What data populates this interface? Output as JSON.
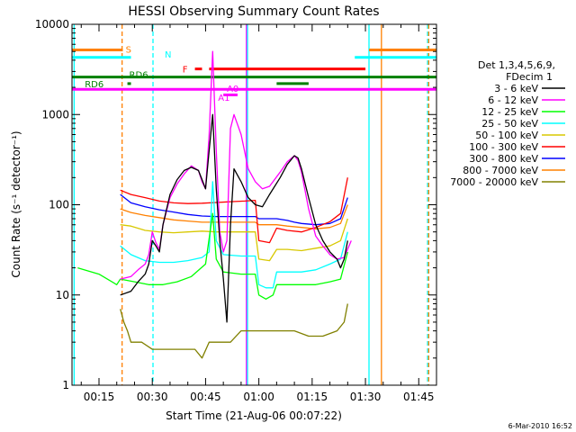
{
  "chart_data": {
    "type": "line",
    "title": "HESSI Observing Summary Count Rates",
    "xlabel": "Start Time (21-Aug-06 00:07:22)",
    "ylabel": "Count Rate (s⁻¹ detector⁻¹)",
    "yscale": "log",
    "ylim": [
      1,
      10000
    ],
    "xlim_minutes": [
      7.4,
      110
    ],
    "x_ticks": [
      {
        "t": 15,
        "label": "00:15"
      },
      {
        "t": 30,
        "label": "00:30"
      },
      {
        "t": 45,
        "label": "00:45"
      },
      {
        "t": 60,
        "label": "01:00"
      },
      {
        "t": 75,
        "label": "01:15"
      },
      {
        "t": 90,
        "label": "01:30"
      },
      {
        "t": 105,
        "label": "01:45"
      }
    ],
    "y_ticks": [
      {
        "v": 1,
        "label": "1"
      },
      {
        "v": 10,
        "label": "10"
      },
      {
        "v": 100,
        "label": "100"
      },
      {
        "v": 1000,
        "label": "1000"
      },
      {
        "v": 10000,
        "label": "10000"
      }
    ],
    "legend": {
      "position": "right",
      "header": [
        "Det 1,3,4,5,6,9,",
        "FDecim 1"
      ]
    },
    "series": [
      {
        "name": "3 - 6 keV",
        "color": "#000000",
        "points": [
          [
            21,
            10
          ],
          [
            24,
            11
          ],
          [
            26,
            14
          ],
          [
            28,
            17
          ],
          [
            29,
            22
          ],
          [
            30,
            40
          ],
          [
            31,
            35
          ],
          [
            32,
            30
          ],
          [
            33,
            60
          ],
          [
            35,
            130
          ],
          [
            37,
            190
          ],
          [
            39,
            240
          ],
          [
            41,
            260
          ],
          [
            43,
            240
          ],
          [
            44,
            190
          ],
          [
            45,
            150
          ],
          [
            46,
            400
          ],
          [
            47,
            1000
          ],
          [
            48,
            150
          ],
          [
            49,
            40
          ],
          [
            50,
            15
          ],
          [
            51,
            5
          ],
          [
            52,
            60
          ],
          [
            53,
            250
          ],
          [
            55,
            180
          ],
          [
            57,
            120
          ],
          [
            59,
            100
          ],
          [
            61,
            95
          ],
          [
            63,
            130
          ],
          [
            66,
            200
          ],
          [
            68,
            280
          ],
          [
            70,
            350
          ],
          [
            71,
            330
          ],
          [
            72,
            250
          ],
          [
            74,
            120
          ],
          [
            76,
            60
          ],
          [
            78,
            40
          ],
          [
            80,
            30
          ],
          [
            82,
            25
          ],
          [
            83,
            20
          ],
          [
            84,
            25
          ],
          [
            85,
            40
          ]
        ]
      },
      {
        "name": "6 - 12 keV",
        "color": "#ff00ff",
        "points": [
          [
            21,
            15
          ],
          [
            24,
            16
          ],
          [
            26,
            19
          ],
          [
            28,
            22
          ],
          [
            29,
            28
          ],
          [
            30,
            50
          ],
          [
            31,
            38
          ],
          [
            32,
            32
          ],
          [
            33,
            60
          ],
          [
            35,
            120
          ],
          [
            37,
            170
          ],
          [
            39,
            220
          ],
          [
            41,
            270
          ],
          [
            43,
            240
          ],
          [
            44,
            180
          ],
          [
            45,
            150
          ],
          [
            46,
            600
          ],
          [
            47,
            5000
          ],
          [
            48,
            400
          ],
          [
            49,
            50
          ],
          [
            50,
            30
          ],
          [
            51,
            40
          ],
          [
            52,
            700
          ],
          [
            53,
            1000
          ],
          [
            55,
            600
          ],
          [
            57,
            250
          ],
          [
            59,
            180
          ],
          [
            61,
            150
          ],
          [
            63,
            160
          ],
          [
            66,
            230
          ],
          [
            68,
            300
          ],
          [
            70,
            350
          ],
          [
            71,
            310
          ],
          [
            72,
            230
          ],
          [
            74,
            90
          ],
          [
            76,
            45
          ],
          [
            78,
            35
          ],
          [
            80,
            28
          ],
          [
            82,
            25
          ],
          [
            84,
            26
          ],
          [
            86,
            40
          ]
        ]
      },
      {
        "name": "12 - 25 keV",
        "color": "#00ff00",
        "points": [
          [
            9,
            20
          ],
          [
            15,
            17
          ],
          [
            20,
            13
          ],
          [
            21,
            15
          ],
          [
            25,
            14
          ],
          [
            29,
            13
          ],
          [
            33,
            13
          ],
          [
            37,
            14
          ],
          [
            41,
            16
          ],
          [
            45,
            22
          ],
          [
            47,
            80
          ],
          [
            48,
            25
          ],
          [
            50,
            18
          ],
          [
            55,
            17
          ],
          [
            59,
            17
          ],
          [
            60,
            10
          ],
          [
            62,
            9
          ],
          [
            64,
            10
          ],
          [
            65,
            13
          ],
          [
            68,
            13
          ],
          [
            72,
            13
          ],
          [
            76,
            13
          ],
          [
            80,
            14
          ],
          [
            83,
            15
          ],
          [
            85,
            30
          ]
        ]
      },
      {
        "name": "25 - 50 keV",
        "color": "#00ffff",
        "points": [
          [
            21,
            35
          ],
          [
            24,
            28
          ],
          [
            28,
            24
          ],
          [
            32,
            23
          ],
          [
            36,
            23
          ],
          [
            40,
            24
          ],
          [
            44,
            26
          ],
          [
            46,
            30
          ],
          [
            47,
            180
          ],
          [
            48,
            40
          ],
          [
            50,
            28
          ],
          [
            55,
            27
          ],
          [
            59,
            27
          ],
          [
            60,
            13
          ],
          [
            62,
            12
          ],
          [
            64,
            12
          ],
          [
            65,
            18
          ],
          [
            68,
            18
          ],
          [
            72,
            18
          ],
          [
            76,
            19
          ],
          [
            80,
            22
          ],
          [
            83,
            25
          ],
          [
            85,
            50
          ]
        ]
      },
      {
        "name": "50 - 100 keV",
        "color": "#d8c800",
        "points": [
          [
            21,
            60
          ],
          [
            24,
            58
          ],
          [
            28,
            52
          ],
          [
            32,
            50
          ],
          [
            36,
            49
          ],
          [
            40,
            50
          ],
          [
            44,
            51
          ],
          [
            48,
            50
          ],
          [
            52,
            50
          ],
          [
            56,
            50
          ],
          [
            59,
            50
          ],
          [
            60,
            25
          ],
          [
            63,
            24
          ],
          [
            65,
            32
          ],
          [
            68,
            32
          ],
          [
            72,
            31
          ],
          [
            76,
            33
          ],
          [
            80,
            35
          ],
          [
            83,
            40
          ],
          [
            85,
            70
          ]
        ]
      },
      {
        "name": "100 - 300 keV",
        "color": "#ff0000",
        "points": [
          [
            21,
            145
          ],
          [
            24,
            130
          ],
          [
            28,
            120
          ],
          [
            32,
            110
          ],
          [
            36,
            105
          ],
          [
            40,
            103
          ],
          [
            44,
            104
          ],
          [
            48,
            106
          ],
          [
            52,
            108
          ],
          [
            56,
            110
          ],
          [
            59,
            112
          ],
          [
            60,
            40
          ],
          [
            63,
            38
          ],
          [
            65,
            55
          ],
          [
            68,
            52
          ],
          [
            72,
            50
          ],
          [
            76,
            56
          ],
          [
            80,
            65
          ],
          [
            83,
            80
          ],
          [
            85,
            200
          ]
        ]
      },
      {
        "name": "300 - 800 keV",
        "color": "#0000ff",
        "points": [
          [
            21,
            130
          ],
          [
            24,
            105
          ],
          [
            28,
            95
          ],
          [
            32,
            88
          ],
          [
            36,
            83
          ],
          [
            40,
            78
          ],
          [
            44,
            75
          ],
          [
            48,
            74
          ],
          [
            52,
            74
          ],
          [
            56,
            74
          ],
          [
            59,
            74
          ],
          [
            60,
            70
          ],
          [
            63,
            70
          ],
          [
            65,
            70
          ],
          [
            68,
            67
          ],
          [
            70,
            64
          ],
          [
            72,
            62
          ],
          [
            76,
            60
          ],
          [
            80,
            62
          ],
          [
            83,
            70
          ],
          [
            85,
            120
          ]
        ]
      },
      {
        "name": "800 - 7000 keV",
        "color": "#ff8000",
        "points": [
          [
            21,
            90
          ],
          [
            24,
            82
          ],
          [
            28,
            76
          ],
          [
            32,
            72
          ],
          [
            36,
            68
          ],
          [
            40,
            66
          ],
          [
            44,
            64
          ],
          [
            48,
            64
          ],
          [
            52,
            64
          ],
          [
            56,
            64
          ],
          [
            59,
            64
          ],
          [
            60,
            60
          ],
          [
            63,
            60
          ],
          [
            65,
            60
          ],
          [
            68,
            58
          ],
          [
            72,
            56
          ],
          [
            76,
            54
          ],
          [
            80,
            56
          ],
          [
            83,
            62
          ],
          [
            85,
            100
          ]
        ]
      },
      {
        "name": "7000 - 20000 keV",
        "color": "#808000",
        "points": [
          [
            21,
            7
          ],
          [
            22,
            5
          ],
          [
            23,
            4
          ],
          [
            24,
            3
          ],
          [
            25,
            3
          ],
          [
            27,
            3
          ],
          [
            30,
            2.5
          ],
          [
            34,
            2.5
          ],
          [
            38,
            2.5
          ],
          [
            42,
            2.5
          ],
          [
            44,
            2
          ],
          [
            46,
            3
          ],
          [
            49,
            3
          ],
          [
            52,
            3
          ],
          [
            55,
            4
          ],
          [
            58,
            4
          ],
          [
            60,
            4
          ],
          [
            63,
            4
          ],
          [
            66,
            4
          ],
          [
            70,
            4
          ],
          [
            74,
            3.5
          ],
          [
            78,
            3.5
          ],
          [
            82,
            4
          ],
          [
            84,
            5
          ],
          [
            85,
            8
          ]
        ]
      }
    ],
    "flag_labels": [
      {
        "label": "S",
        "color": "#ff8000"
      },
      {
        "label": "N",
        "color": "#00ffff"
      },
      {
        "label": "F",
        "color": "#ff0000"
      },
      {
        "label": "RD6",
        "color": "#008000"
      },
      {
        "label": "RD6",
        "color": "#008000"
      },
      {
        "label": "A0",
        "color": "#ff00ff"
      },
      {
        "label": "A1",
        "color": "#ff00ff"
      }
    ],
    "flag_bars": [
      {
        "color": "#ff8000",
        "y": 5200,
        "segments": [
          [
            7.4,
            21.7
          ],
          [
            91,
            110
          ]
        ]
      },
      {
        "color": "#00ffff",
        "y": 4300,
        "segments": [
          [
            7.4,
            24
          ],
          [
            87,
            110
          ]
        ]
      },
      {
        "color": "#ff0000",
        "y": 3200,
        "segments": [
          [
            42,
            44
          ],
          [
            46,
            90
          ]
        ]
      },
      {
        "color": "#008000",
        "y": 2600,
        "segments": [
          [
            7.4,
            110
          ]
        ]
      },
      {
        "color": "#008000",
        "y": 2200,
        "segments": [
          [
            23,
            24
          ],
          [
            65,
            74
          ]
        ]
      },
      {
        "color": "#ff00ff",
        "y": 1900,
        "segments": [
          [
            7.4,
            110
          ]
        ]
      },
      {
        "color": "#ff00ff",
        "y": 1650,
        "segments": [
          [
            50,
            54
          ]
        ]
      }
    ],
    "vlines": [
      {
        "t": 8,
        "color": "#00ffff",
        "style": "solid"
      },
      {
        "t": 21.5,
        "color": "#ff8000",
        "style": "dash"
      },
      {
        "t": 30.2,
        "color": "#00ffff",
        "style": "dash"
      },
      {
        "t": 56.5,
        "color": "#ff00ff",
        "style": "solid"
      },
      {
        "t": 56.8,
        "color": "#00ffff",
        "style": "solid"
      },
      {
        "t": 91,
        "color": "#00ffff",
        "style": "solid"
      },
      {
        "t": 94.5,
        "color": "#ff8000",
        "style": "solid"
      },
      {
        "t": 107.5,
        "color": "#00ffff",
        "style": "dash"
      },
      {
        "t": 107.8,
        "color": "#ff8000",
        "style": "dash"
      }
    ],
    "grid": false
  },
  "footer": {
    "date_stamp": "6-Mar-2010 16:52"
  }
}
